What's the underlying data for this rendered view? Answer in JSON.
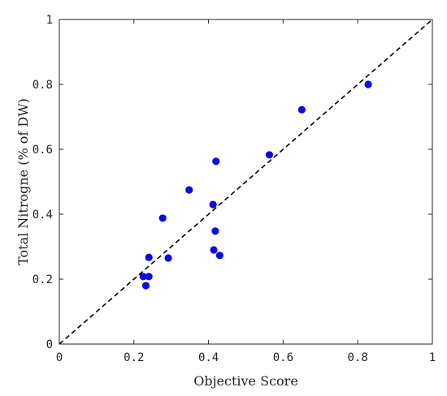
{
  "chart_data": {
    "type": "scatter",
    "title": "",
    "xlabel": "Objective Score",
    "ylabel": "Total Nitrogne (% of DW)",
    "xlim": [
      0,
      1
    ],
    "ylim": [
      0,
      1
    ],
    "xticks": [
      "0",
      "0.2",
      "0.4",
      "0.6",
      "0.8",
      "1"
    ],
    "yticks": [
      "0",
      "0.2",
      "0.4",
      "0.6",
      "0.8",
      "1"
    ],
    "grid": false,
    "reference_line": {
      "style": "dashed",
      "from": [
        0,
        0
      ],
      "to": [
        1,
        1
      ]
    },
    "points": [
      {
        "x": 0.225,
        "y": 0.208
      },
      {
        "x": 0.232,
        "y": 0.18
      },
      {
        "x": 0.24,
        "y": 0.208
      },
      {
        "x": 0.24,
        "y": 0.267
      },
      {
        "x": 0.277,
        "y": 0.388
      },
      {
        "x": 0.292,
        "y": 0.265
      },
      {
        "x": 0.348,
        "y": 0.475
      },
      {
        "x": 0.412,
        "y": 0.43
      },
      {
        "x": 0.414,
        "y": 0.29
      },
      {
        "x": 0.418,
        "y": 0.348
      },
      {
        "x": 0.42,
        "y": 0.563
      },
      {
        "x": 0.43,
        "y": 0.273
      },
      {
        "x": 0.563,
        "y": 0.583
      },
      {
        "x": 0.65,
        "y": 0.722
      },
      {
        "x": 0.828,
        "y": 0.8
      }
    ],
    "colors": {
      "points": "#0a0ae6",
      "axis": "#222222",
      "reference": "#000000"
    }
  }
}
